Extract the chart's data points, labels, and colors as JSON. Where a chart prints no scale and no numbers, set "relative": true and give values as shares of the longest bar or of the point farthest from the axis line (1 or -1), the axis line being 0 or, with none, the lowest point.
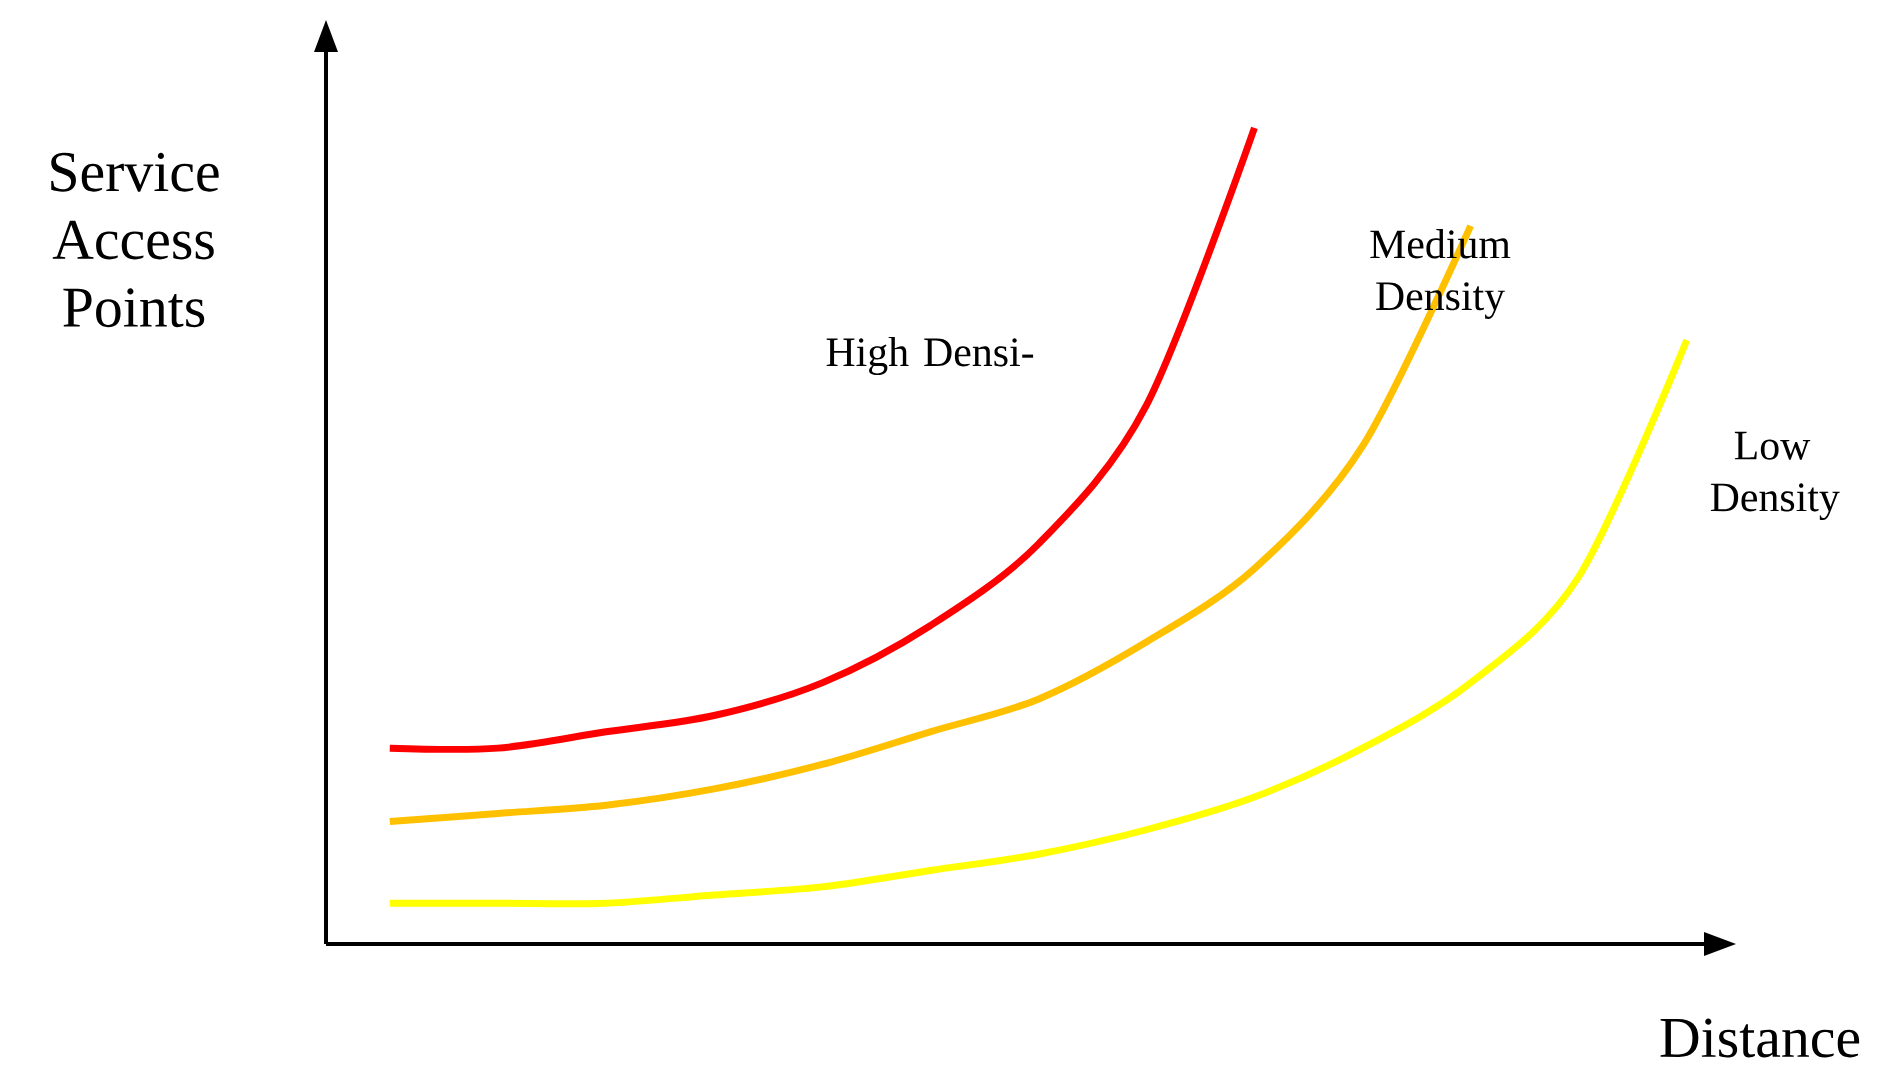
{
  "chart_data": {
    "type": "line",
    "relative": true,
    "xlabel": "Distance",
    "ylabel": "Service Access Points",
    "categories": [
      null,
      null,
      null,
      null,
      null,
      null,
      null,
      null,
      null,
      null,
      null,
      null,
      null
    ],
    "marker": "none",
    "line_style": "solid",
    "series": [
      {
        "name": "High Densi-",
        "color": "#ff0000",
        "values": [
          0.24,
          0.24,
          0.26,
          0.28,
          0.32,
          0.39,
          0.49,
          0.66,
          1,
          null,
          null,
          null,
          null
        ]
      },
      {
        "name": "Medium Density",
        "color": "#ffc000",
        "values": [
          0.15,
          0.16,
          0.17,
          0.19,
          0.22,
          0.26,
          0.3,
          0.37,
          0.46,
          0.61,
          0.88,
          null,
          null
        ]
      },
      {
        "name": "Low Density",
        "color": "#ffff00",
        "values": [
          0.05,
          0.05,
          0.05,
          0.06,
          0.07,
          0.09,
          0.11,
          0.14,
          0.18,
          0.24,
          0.32,
          0.45,
          0.74
        ]
      }
    ]
  }
}
